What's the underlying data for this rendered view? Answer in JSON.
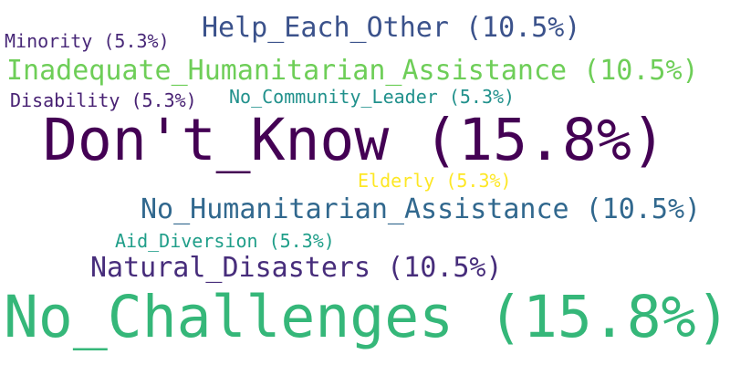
{
  "words": [
    {
      "text": "Don't_Know (15.8%)",
      "color": "#440154"
    },
    {
      "text": "No_Challenges (15.8%)",
      "color": "#35b779"
    },
    {
      "text": "Help_Each_Other (10.5%)",
      "color": "#3b528b"
    },
    {
      "text": "Inadequate_Humanitarian_Assistance (10.5%)",
      "color": "#6ece58"
    },
    {
      "text": "No_Humanitarian_Assistance (10.5%)",
      "color": "#31688e"
    },
    {
      "text": "Natural_Disasters (10.5%)",
      "color": "#472d7b"
    },
    {
      "text": "Minority (5.3%)",
      "color": "#482878"
    },
    {
      "text": "Disability (5.3%)",
      "color": "#482173"
    },
    {
      "text": "No_Community_Leader (5.3%)",
      "color": "#21918c"
    },
    {
      "text": "Elderly (5.3%)",
      "color": "#fde725"
    },
    {
      "text": "Aid_Diversion (5.3%)",
      "color": "#1f9e89"
    }
  ]
}
